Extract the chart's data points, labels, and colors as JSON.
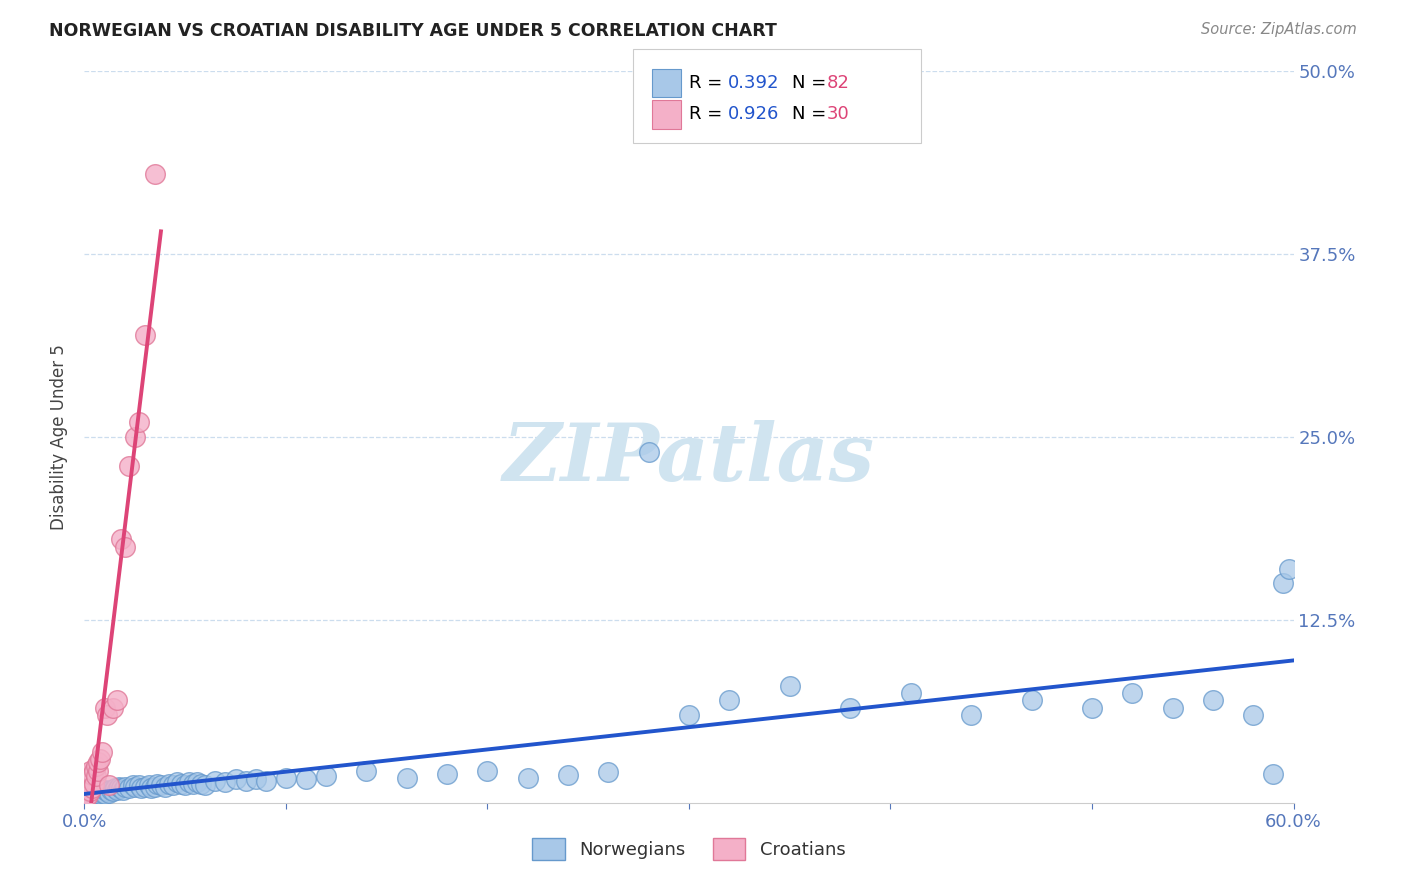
{
  "title": "NORWEGIAN VS CROATIAN DISABILITY AGE UNDER 5 CORRELATION CHART",
  "source": "Source: ZipAtlas.com",
  "ylabel_label": "Disability Age Under 5",
  "xlim": [
    0.0,
    0.6
  ],
  "ylim": [
    0.0,
    0.5
  ],
  "xticks": [
    0.0,
    0.6
  ],
  "xticklabels": [
    "0.0%",
    "60.0%"
  ],
  "yticks": [
    0.0,
    0.125,
    0.25,
    0.375,
    0.5
  ],
  "yticklabels": [
    "",
    "12.5%",
    "25.0%",
    "37.5%",
    "50.0%"
  ],
  "ygrid_ticks": [
    0.125,
    0.25,
    0.375,
    0.5
  ],
  "norwegian_color": "#a8c8e8",
  "norwegian_edge": "#6699cc",
  "croatian_color": "#f4b0c8",
  "croatian_edge": "#e07898",
  "trend_blue": "#2255cc",
  "trend_pink": "#dd4477",
  "R_norwegian": 0.392,
  "N_norwegian": 82,
  "R_croatian": 0.926,
  "N_croatian": 30,
  "legend_text_color": "#000000",
  "legend_R_color": "#2255cc",
  "legend_N_color": "#dd4477",
  "watermark": "ZIPatlas",
  "watermark_color": "#d0e4f0",
  "grid_color": "#ccddee",
  "background": "#ffffff",
  "tick_color": "#5577bb",
  "nor_x": [
    0.001,
    0.002,
    0.002,
    0.003,
    0.003,
    0.004,
    0.004,
    0.005,
    0.005,
    0.006,
    0.006,
    0.007,
    0.007,
    0.008,
    0.008,
    0.009,
    0.01,
    0.01,
    0.011,
    0.012,
    0.013,
    0.014,
    0.015,
    0.016,
    0.017,
    0.018,
    0.019,
    0.02,
    0.022,
    0.024,
    0.025,
    0.027,
    0.028,
    0.03,
    0.032,
    0.033,
    0.035,
    0.036,
    0.038,
    0.04,
    0.042,
    0.044,
    0.046,
    0.048,
    0.05,
    0.052,
    0.054,
    0.056,
    0.058,
    0.06,
    0.065,
    0.07,
    0.075,
    0.08,
    0.085,
    0.09,
    0.1,
    0.11,
    0.12,
    0.14,
    0.16,
    0.18,
    0.2,
    0.22,
    0.24,
    0.26,
    0.28,
    0.3,
    0.32,
    0.35,
    0.38,
    0.41,
    0.44,
    0.47,
    0.5,
    0.52,
    0.54,
    0.56,
    0.58,
    0.59,
    0.595,
    0.598
  ],
  "nor_y": [
    0.005,
    0.004,
    0.006,
    0.005,
    0.007,
    0.004,
    0.006,
    0.005,
    0.007,
    0.006,
    0.008,
    0.005,
    0.007,
    0.006,
    0.008,
    0.007,
    0.006,
    0.009,
    0.008,
    0.007,
    0.009,
    0.008,
    0.01,
    0.009,
    0.011,
    0.01,
    0.009,
    0.011,
    0.01,
    0.012,
    0.011,
    0.012,
    0.01,
    0.011,
    0.012,
    0.01,
    0.011,
    0.013,
    0.012,
    0.011,
    0.013,
    0.012,
    0.014,
    0.013,
    0.012,
    0.014,
    0.013,
    0.014,
    0.013,
    0.012,
    0.015,
    0.014,
    0.016,
    0.015,
    0.016,
    0.015,
    0.017,
    0.016,
    0.018,
    0.022,
    0.017,
    0.02,
    0.022,
    0.017,
    0.019,
    0.021,
    0.24,
    0.06,
    0.07,
    0.08,
    0.065,
    0.075,
    0.06,
    0.07,
    0.065,
    0.075,
    0.065,
    0.07,
    0.06,
    0.02,
    0.15,
    0.16
  ],
  "cro_x": [
    0.001,
    0.001,
    0.002,
    0.002,
    0.002,
    0.003,
    0.003,
    0.003,
    0.004,
    0.004,
    0.005,
    0.005,
    0.006,
    0.006,
    0.007,
    0.007,
    0.008,
    0.009,
    0.01,
    0.011,
    0.012,
    0.014,
    0.016,
    0.018,
    0.02,
    0.022,
    0.025,
    0.027,
    0.03,
    0.035
  ],
  "cro_y": [
    0.003,
    0.015,
    0.005,
    0.012,
    0.02,
    0.008,
    0.016,
    0.022,
    0.01,
    0.019,
    0.013,
    0.022,
    0.018,
    0.025,
    0.022,
    0.028,
    0.03,
    0.035,
    0.065,
    0.06,
    0.012,
    0.065,
    0.07,
    0.18,
    0.175,
    0.23,
    0.25,
    0.26,
    0.32,
    0.43
  ],
  "cro_trend_x0": 0.0,
  "cro_trend_x1": 0.038,
  "nor_trend_x0": 0.0,
  "nor_trend_x1": 0.6
}
